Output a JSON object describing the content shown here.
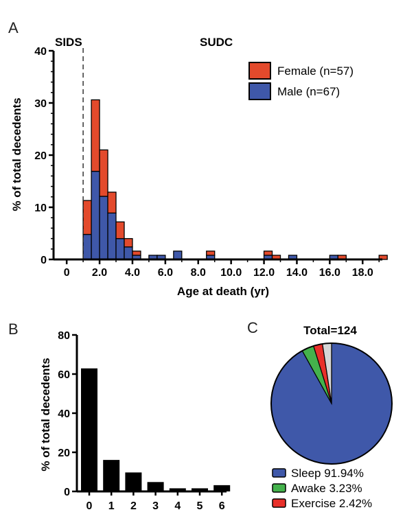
{
  "panels": {
    "a": "A",
    "b": "B",
    "c": "C"
  },
  "chart_data": [
    {
      "type": "bar",
      "stacked": true,
      "region_labels": [
        "SIDS",
        "SUDC"
      ],
      "ylabel": "% of total decedents",
      "xlabel": "Age at death (yr)",
      "ylim": [
        0,
        40
      ],
      "yticks": [
        "0",
        "10",
        "20",
        "30",
        "40"
      ],
      "xlim": [
        -0.8,
        19.2
      ],
      "xticks": [
        "0",
        "2.0",
        "4.0",
        "6.0",
        "8.0",
        "10.0",
        "12.0",
        "14.0",
        "16.0",
        "18.0"
      ],
      "xtick_values": [
        0,
        2,
        4,
        6,
        8,
        10,
        12,
        14,
        16,
        18
      ],
      "sids_line_x": 1.0,
      "bin_width": 0.5,
      "bin_starts": [
        1.0,
        1.5,
        2.0,
        2.5,
        3.0,
        3.5,
        4.0,
        4.5,
        5.0,
        5.5,
        6.0,
        6.5,
        7.0,
        7.5,
        8.0,
        8.5,
        9.0,
        9.5,
        10.0,
        10.5,
        11.0,
        11.5,
        12.0,
        12.5,
        13.0,
        13.5,
        14.0,
        14.5,
        15.0,
        15.5,
        16.0,
        16.5,
        17.0,
        17.5,
        18.0,
        18.5,
        19.0
      ],
      "series": [
        {
          "name": "Male (n=67)",
          "color": "#3f58a9",
          "values": [
            4.8,
            16.9,
            12.1,
            8.9,
            4.0,
            2.4,
            0.8,
            0.0,
            0.8,
            0.8,
            0.0,
            1.6,
            0.0,
            0.0,
            0.0,
            0.8,
            0.0,
            0.0,
            0.0,
            0.0,
            0.0,
            0.0,
            0.8,
            0.0,
            0.0,
            0.8,
            0.0,
            0.0,
            0.0,
            0.0,
            0.8,
            0.0,
            0.0,
            0.0,
            0.0,
            0.0,
            0.0
          ]
        },
        {
          "name": "Female (n=57)",
          "color": "#e34a2c",
          "values": [
            6.5,
            13.7,
            8.9,
            4.0,
            3.2,
            1.6,
            0.8,
            0.0,
            0.0,
            0.0,
            0.0,
            0.0,
            0.0,
            0.0,
            0.0,
            0.8,
            0.0,
            0.0,
            0.0,
            0.0,
            0.0,
            0.0,
            0.8,
            0.8,
            0.0,
            0.0,
            0.0,
            0.0,
            0.0,
            0.0,
            0.0,
            0.8,
            0.0,
            0.0,
            0.0,
            0.0,
            0.8
          ]
        }
      ],
      "legend_order": [
        "Female (n=57)",
        "Male (n=67)"
      ],
      "legend": "top-right"
    },
    {
      "type": "bar",
      "categories": [
        "0",
        "1",
        "2",
        "3",
        "4",
        "5",
        "6"
      ],
      "values": [
        62.9,
        16.1,
        9.7,
        4.8,
        1.6,
        1.6,
        3.2
      ],
      "ylabel": "% of total decedents",
      "ylim": [
        0,
        80
      ],
      "yticks": [
        "0",
        "20",
        "40",
        "60",
        "80"
      ],
      "color": "#000000"
    },
    {
      "type": "pie",
      "title": "Total=124",
      "slices": [
        {
          "label": "Sleep 91.94%",
          "value": 91.94,
          "color": "#3f58a9",
          "in_legend": true
        },
        {
          "label": "Awake 3.23%",
          "value": 3.23,
          "color": "#44b24c",
          "in_legend": true
        },
        {
          "label": "Exercise 2.42%",
          "value": 2.42,
          "color": "#e8302a",
          "in_legend": true
        },
        {
          "label": "",
          "value": 2.41,
          "color": "#d6d6d6",
          "in_legend": false
        }
      ],
      "legend": "bottom"
    }
  ]
}
